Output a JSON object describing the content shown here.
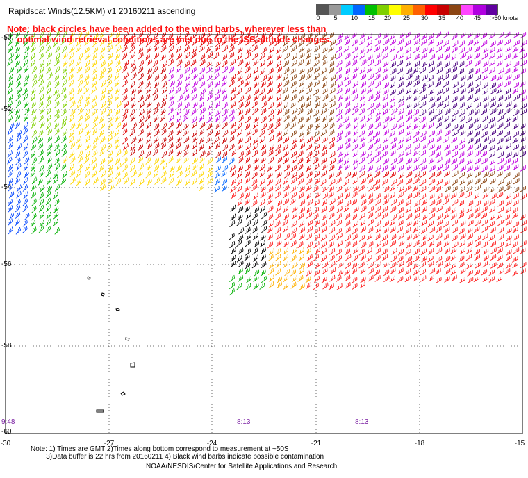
{
  "title": "Rapidscat Winds(12.5KM) v1 20160211 ascending",
  "notice": {
    "line1": "Note: black circles have been added to the wind barbs, wherever less than",
    "line2": "optimal wind retrieval conditions are met due to the ISS altitude changes."
  },
  "colorbar": {
    "labels": [
      "0",
      "5",
      "10",
      "15",
      "20",
      "25",
      "30",
      "35",
      "40",
      "45"
    ],
    "units": ">50 knots",
    "colors": [
      "#555555",
      "#9a9a9a",
      "#00ccff",
      "#0066ff",
      "#00c000",
      "#7fd000",
      "#ffff00",
      "#ffb000",
      "#ff6000",
      "#ff0000",
      "#c80000",
      "#8b4513",
      "#ff44ff",
      "#b000e0",
      "#6000a0"
    ]
  },
  "axes": {
    "lat_labels": [
      "-50",
      "-52",
      "-54",
      "-56",
      "-58",
      "-60"
    ],
    "lon_labels": [
      "-30",
      "-27",
      "-24",
      "-21",
      "-18",
      "-15"
    ]
  },
  "time_labels": [
    "9:48",
    "8:13",
    "8:13"
  ],
  "notes": {
    "line1": "Note: 1) Times are GMT 2)Times along bottom correspond to measurement at ~50S",
    "line2": "3)Data buffer is 22 hrs from 20160211 4) Black wind barbs indicate possible contamination"
  },
  "credit": "NOAA/NESDIS/Center for Satellite Applications and Research"
}
